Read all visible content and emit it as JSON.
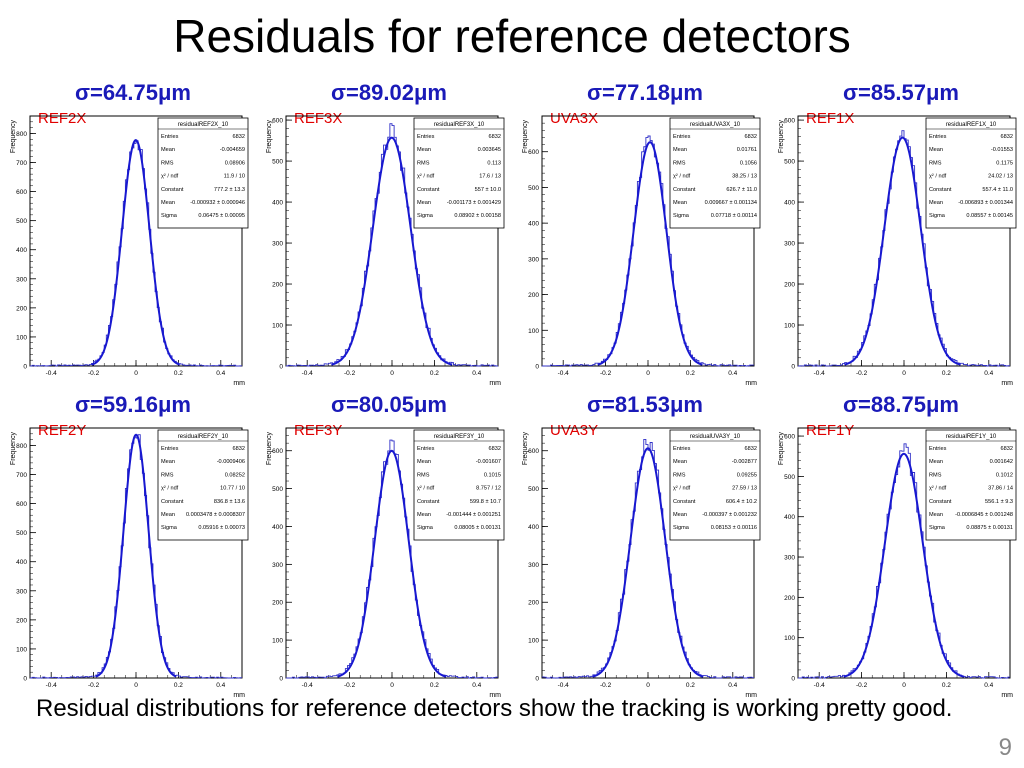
{
  "slide": {
    "title": "Residuals for reference detectors",
    "caption": "Residual distributions for reference detectors show the tracking is working pretty good.",
    "page_number": "9"
  },
  "colors": {
    "sigma_text": "#1a1ab8",
    "detector_label": "#e00000",
    "histogram": "#3030c8",
    "fit": "#1818d0"
  },
  "chart_data": [
    {
      "type": "bar",
      "sigma": "σ=64.75μm",
      "detector": "REF2X",
      "ylabel": "Frequency",
      "xlabel": "mm",
      "xlim": [
        -0.5,
        0.5
      ],
      "ylim": [
        0,
        860
      ],
      "yticks": [
        "0",
        "100",
        "200",
        "300",
        "400",
        "500",
        "600",
        "700",
        "800"
      ],
      "xticks": [
        "-0.4",
        "-0.2",
        "0",
        "0.2",
        "0.4"
      ],
      "stats": {
        "title": "residualREF2X_10",
        "rows": [
          [
            "Entries",
            "6832"
          ],
          [
            "Mean",
            "-0.004659"
          ],
          [
            "RMS",
            "0.08906"
          ],
          [
            "χ² / ndf",
            "11.9 / 10"
          ],
          [
            "Constant",
            "777.2 ± 13.3"
          ],
          [
            "Mean",
            "-0.000932 ± 0.000946"
          ],
          [
            "Sigma",
            "0.06475 ± 0.00095"
          ]
        ]
      },
      "fit": {
        "constant": 777.2,
        "mean": -0.000932,
        "sigma": 0.06475
      }
    },
    {
      "type": "bar",
      "sigma": "σ=89.02μm",
      "detector": "REF3X",
      "ylabel": "Frequency",
      "xlabel": "mm",
      "xlim": [
        -0.5,
        0.5
      ],
      "ylim": [
        0,
        610
      ],
      "yticks": [
        "0",
        "100",
        "200",
        "300",
        "400",
        "500",
        "600"
      ],
      "xticks": [
        "-0.4",
        "-0.2",
        "0",
        "0.2",
        "0.4"
      ],
      "stats": {
        "title": "residualREF3X_10",
        "rows": [
          [
            "Entries",
            "6832"
          ],
          [
            "Mean",
            "0.003645"
          ],
          [
            "RMS",
            "0.113"
          ],
          [
            "χ² / ndf",
            "17.6 / 13"
          ],
          [
            "Constant",
            "557 ± 10.0"
          ],
          [
            "Mean",
            "-0.001173 ± 0.001429"
          ],
          [
            "Sigma",
            "0.08902 ± 0.00158"
          ]
        ]
      },
      "fit": {
        "constant": 557,
        "mean": -0.001173,
        "sigma": 0.08902
      }
    },
    {
      "type": "bar",
      "sigma": "σ=77.18μm",
      "detector": "UVA3X",
      "ylabel": "Frequency",
      "xlabel": "mm",
      "xlim": [
        -0.5,
        0.5
      ],
      "ylim": [
        0,
        700
      ],
      "yticks": [
        "0",
        "100",
        "200",
        "300",
        "400",
        "500",
        "600"
      ],
      "xticks": [
        "-0.4",
        "-0.2",
        "0",
        "0.2",
        "0.4"
      ],
      "stats": {
        "title": "residualUVA3X_10",
        "rows": [
          [
            "Entries",
            "6832"
          ],
          [
            "Mean",
            "0.01761"
          ],
          [
            "RMS",
            "0.1056"
          ],
          [
            "χ² / ndf",
            "38.25 / 13"
          ],
          [
            "Constant",
            "626.7 ± 11.0"
          ],
          [
            "Mean",
            "0.009667 ± 0.001134"
          ],
          [
            "Sigma",
            "0.07718 ± 0.00114"
          ]
        ]
      },
      "fit": {
        "constant": 626.7,
        "mean": 0.009667,
        "sigma": 0.07718
      }
    },
    {
      "type": "bar",
      "sigma": "σ=85.57μm",
      "detector": "REF1X",
      "ylabel": "Frequency",
      "xlabel": "mm",
      "xlim": [
        -0.5,
        0.5
      ],
      "ylim": [
        0,
        610
      ],
      "yticks": [
        "0",
        "100",
        "200",
        "300",
        "400",
        "500",
        "600"
      ],
      "xticks": [
        "-0.4",
        "-0.2",
        "0",
        "0.2",
        "0.4"
      ],
      "stats": {
        "title": "residualREF1X_10",
        "rows": [
          [
            "Entries",
            "6832"
          ],
          [
            "Mean",
            "-0.01553"
          ],
          [
            "RMS",
            "0.1175"
          ],
          [
            "χ² / ndf",
            "24.02 / 13"
          ],
          [
            "Constant",
            "557.4 ± 11.0"
          ],
          [
            "Mean",
            "-0.006893 ± 0.001344"
          ],
          [
            "Sigma",
            "0.08557 ± 0.00145"
          ]
        ]
      },
      "fit": {
        "constant": 557.4,
        "mean": -0.006893,
        "sigma": 0.08557
      }
    },
    {
      "type": "bar",
      "sigma": "σ=59.16μm",
      "detector": "REF2Y",
      "ylabel": "Frequency",
      "xlabel": "mm",
      "xlim": [
        -0.5,
        0.5
      ],
      "ylim": [
        0,
        860
      ],
      "yticks": [
        "0",
        "100",
        "200",
        "300",
        "400",
        "500",
        "600",
        "700",
        "800"
      ],
      "xticks": [
        "-0.4",
        "-0.2",
        "0",
        "0.2",
        "0.4"
      ],
      "stats": {
        "title": "residualREF2Y_10",
        "rows": [
          [
            "Entries",
            "6832"
          ],
          [
            "Mean",
            "-0.0009406"
          ],
          [
            "RMS",
            "0.08252"
          ],
          [
            "χ² / ndf",
            "10.77 / 10"
          ],
          [
            "Constant",
            "836.8 ± 13.6"
          ],
          [
            "Mean",
            "0.0003478 ± 0.0008307"
          ],
          [
            "Sigma",
            "0.05916 ± 0.00073"
          ]
        ]
      },
      "fit": {
        "constant": 836.8,
        "mean": 0.0003478,
        "sigma": 0.05916
      }
    },
    {
      "type": "bar",
      "sigma": "σ=80.05μm",
      "detector": "REF3Y",
      "ylabel": "Frequency",
      "xlabel": "mm",
      "xlim": [
        -0.5,
        0.5
      ],
      "ylim": [
        0,
        660
      ],
      "yticks": [
        "0",
        "100",
        "200",
        "300",
        "400",
        "500",
        "600"
      ],
      "xticks": [
        "-0.4",
        "-0.2",
        "0",
        "0.2",
        "0.4"
      ],
      "stats": {
        "title": "residualREF3Y_10",
        "rows": [
          [
            "Entries",
            "6832"
          ],
          [
            "Mean",
            "-0.001607"
          ],
          [
            "RMS",
            "0.1015"
          ],
          [
            "χ² / ndf",
            "8.757 / 12"
          ],
          [
            "Constant",
            "599.8 ± 10.7"
          ],
          [
            "Mean",
            "-0.001444 ± 0.001251"
          ],
          [
            "Sigma",
            "0.08005 ± 0.00131"
          ]
        ]
      },
      "fit": {
        "constant": 599.8,
        "mean": -0.001444,
        "sigma": 0.08005
      }
    },
    {
      "type": "bar",
      "sigma": "σ=81.53μm",
      "detector": "UVA3Y",
      "ylabel": "Frequency",
      "xlabel": "mm",
      "xlim": [
        -0.5,
        0.5
      ],
      "ylim": [
        0,
        660
      ],
      "yticks": [
        "0",
        "100",
        "200",
        "300",
        "400",
        "500",
        "600"
      ],
      "xticks": [
        "-0.4",
        "-0.2",
        "0",
        "0.2",
        "0.4"
      ],
      "stats": {
        "title": "residualUVA3Y_10",
        "rows": [
          [
            "Entries",
            "6832"
          ],
          [
            "Mean",
            "-0.002877"
          ],
          [
            "RMS",
            "0.09255"
          ],
          [
            "χ² / ndf",
            "27.59 / 13"
          ],
          [
            "Constant",
            "606.4 ± 10.2"
          ],
          [
            "Mean",
            "-0.000397 ± 0.001232"
          ],
          [
            "Sigma",
            "0.08153 ± 0.00116"
          ]
        ]
      },
      "fit": {
        "constant": 606.4,
        "mean": -0.000397,
        "sigma": 0.08153
      }
    },
    {
      "type": "bar",
      "sigma": "σ=88.75μm",
      "detector": "REF1Y",
      "ylabel": "Frequency",
      "xlabel": "mm",
      "xlim": [
        -0.5,
        0.5
      ],
      "ylim": [
        0,
        620
      ],
      "yticks": [
        "0",
        "100",
        "200",
        "300",
        "400",
        "500",
        "600"
      ],
      "xticks": [
        "-0.4",
        "-0.2",
        "0",
        "0.2",
        "0.4"
      ],
      "stats": {
        "title": "residualREF1Y_10",
        "rows": [
          [
            "Entries",
            "6832"
          ],
          [
            "Mean",
            "0.001642"
          ],
          [
            "RMS",
            "0.1012"
          ],
          [
            "χ² / ndf",
            "37.86 / 14"
          ],
          [
            "Constant",
            "556.1 ± 9.3"
          ],
          [
            "Mean",
            "-0.0006845 ± 0.001248"
          ],
          [
            "Sigma",
            "0.08875 ± 0.00131"
          ]
        ]
      },
      "fit": {
        "constant": 556.1,
        "mean": -0.0006845,
        "sigma": 0.08875
      }
    }
  ]
}
